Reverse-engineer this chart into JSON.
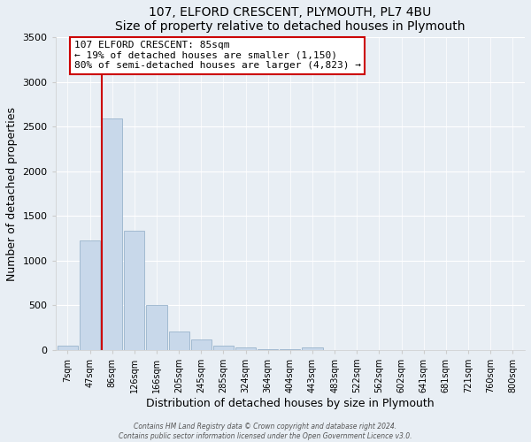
{
  "title": "107, ELFORD CRESCENT, PLYMOUTH, PL7 4BU",
  "subtitle": "Size of property relative to detached houses in Plymouth",
  "xlabel": "Distribution of detached houses by size in Plymouth",
  "ylabel": "Number of detached properties",
  "bar_color": "#c8d8ea",
  "bar_edge_color": "#9ab4cc",
  "bin_labels": [
    "7sqm",
    "47sqm",
    "86sqm",
    "126sqm",
    "166sqm",
    "205sqm",
    "245sqm",
    "285sqm",
    "324sqm",
    "364sqm",
    "404sqm",
    "443sqm",
    "483sqm",
    "522sqm",
    "562sqm",
    "602sqm",
    "641sqm",
    "681sqm",
    "721sqm",
    "760sqm",
    "800sqm"
  ],
  "bar_values": [
    50,
    1230,
    2590,
    1340,
    500,
    205,
    115,
    50,
    30,
    10,
    5,
    30,
    0,
    0,
    0,
    0,
    0,
    0,
    0,
    0,
    0
  ],
  "ylim": [
    0,
    3500
  ],
  "yticks": [
    0,
    500,
    1000,
    1500,
    2000,
    2500,
    3000,
    3500
  ],
  "property_line_color": "#cc0000",
  "annotation_title": "107 ELFORD CRESCENT: 85sqm",
  "annotation_line1": "← 19% of detached houses are smaller (1,150)",
  "annotation_line2": "80% of semi-detached houses are larger (4,823) →",
  "annotation_box_color": "#ffffff",
  "annotation_box_edge": "#cc0000",
  "footer1": "Contains HM Land Registry data © Crown copyright and database right 2024.",
  "footer2": "Contains public sector information licensed under the Open Government Licence v3.0.",
  "background_color": "#e8eef4",
  "plot_bg_color": "#e8eef4",
  "grid_color": "#ffffff",
  "spine_color": "#cccccc"
}
